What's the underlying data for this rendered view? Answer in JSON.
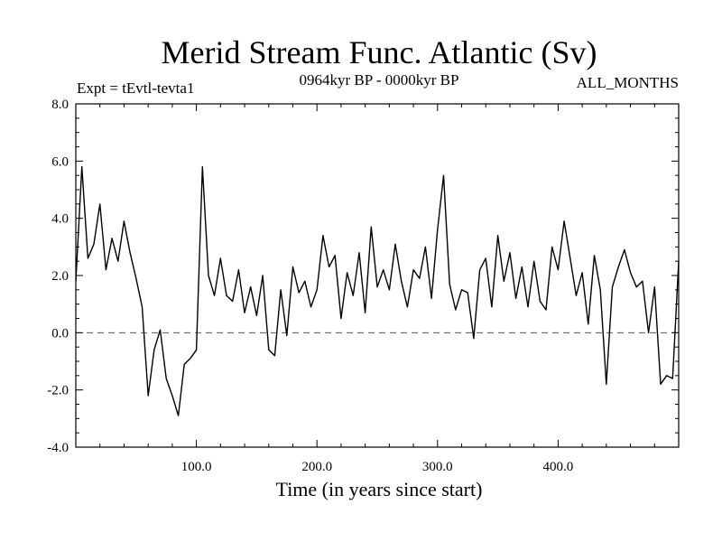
{
  "chart_data": {
    "type": "line",
    "title": "Merid Stream Func. Atlantic (Sv)",
    "subtitle_left": "Expt = tEvtl-tevta1",
    "subtitle_center": "0964kyr BP - 0000kyr BP",
    "subtitle_right": "ALL_MONTHS",
    "xlabel": "Time (in years since start)",
    "ylabel": "",
    "xlim": [
      0,
      500
    ],
    "ylim": [
      -4.0,
      8.0
    ],
    "x_ticks": [
      100,
      200,
      300,
      400
    ],
    "x_tick_labels": [
      "100.0",
      "200.0",
      "300.0",
      "400.0"
    ],
    "y_ticks": [
      -4,
      -2,
      0,
      2,
      4,
      6,
      8
    ],
    "y_tick_labels": [
      "-4.0",
      "-2.0",
      "0.0",
      "2.0",
      "4.0",
      "6.0",
      "8.0"
    ],
    "reference_line": {
      "y": 0,
      "style": "dashed",
      "color": "#555555"
    },
    "grid": false,
    "legend": "none",
    "series": [
      {
        "name": "Merid Stream Func. Atlantic",
        "color": "#000000",
        "x": [
          0,
          5,
          10,
          15,
          20,
          25,
          30,
          35,
          40,
          45,
          50,
          55,
          60,
          65,
          70,
          75,
          80,
          85,
          90,
          95,
          100,
          105,
          110,
          115,
          120,
          125,
          130,
          135,
          140,
          145,
          150,
          155,
          160,
          165,
          170,
          175,
          180,
          185,
          190,
          195,
          200,
          205,
          210,
          215,
          220,
          225,
          230,
          235,
          240,
          245,
          250,
          255,
          260,
          265,
          270,
          275,
          280,
          285,
          290,
          295,
          300,
          305,
          310,
          315,
          320,
          325,
          330,
          335,
          340,
          345,
          350,
          355,
          360,
          365,
          370,
          375,
          380,
          385,
          390,
          395,
          400,
          405,
          410,
          415,
          420,
          425,
          430,
          435,
          440,
          445,
          450,
          455,
          460,
          465,
          470,
          475,
          480,
          485,
          490,
          495,
          500
        ],
        "values": [
          1.8,
          5.8,
          2.6,
          3.1,
          4.5,
          2.2,
          3.3,
          2.5,
          3.9,
          2.8,
          1.9,
          0.9,
          -2.2,
          -0.6,
          0.1,
          -1.6,
          -2.2,
          -2.9,
          -1.1,
          -0.9,
          -0.6,
          5.8,
          2.0,
          1.3,
          2.6,
          1.3,
          1.1,
          2.2,
          0.7,
          1.6,
          0.6,
          2.0,
          -0.6,
          -0.8,
          1.5,
          -0.1,
          2.3,
          1.4,
          1.8,
          0.9,
          1.5,
          3.4,
          2.3,
          2.7,
          0.5,
          2.1,
          1.3,
          2.8,
          0.7,
          3.7,
          1.6,
          2.2,
          1.5,
          3.1,
          1.8,
          0.9,
          2.2,
          1.9,
          3.0,
          1.2,
          3.6,
          5.5,
          1.7,
          0.8,
          1.5,
          1.4,
          -0.2,
          2.2,
          2.6,
          0.9,
          3.4,
          1.8,
          2.8,
          1.2,
          2.3,
          0.9,
          2.5,
          1.1,
          0.8,
          3.0,
          2.2,
          3.9,
          2.6,
          1.3,
          2.1,
          0.3,
          2.7,
          1.5,
          -1.8,
          1.6,
          2.3,
          2.9,
          2.1,
          1.6,
          1.8,
          0.0,
          1.6,
          -1.8,
          -1.5,
          -1.6,
          2.5
        ]
      }
    ]
  }
}
